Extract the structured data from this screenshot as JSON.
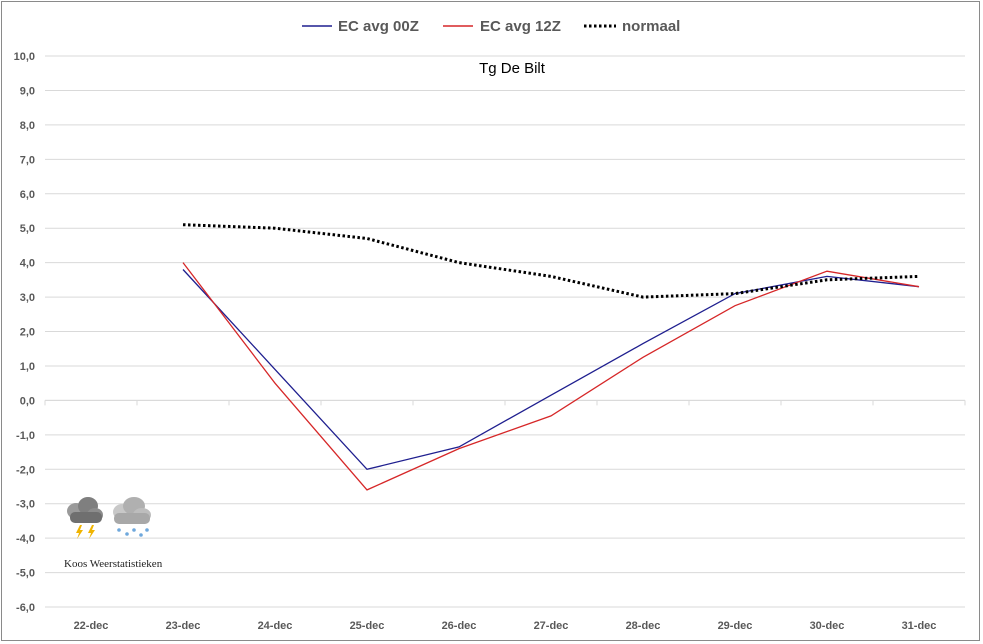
{
  "chart_data": {
    "type": "line",
    "title": "Tg De Bilt",
    "categories": [
      "22-dec",
      "23-dec",
      "24-dec",
      "25-dec",
      "26-dec",
      "27-dec",
      "28-dec",
      "29-dec",
      "30-dec",
      "31-dec"
    ],
    "y_ticks": [
      "10,0",
      "9,0",
      "8,0",
      "7,0",
      "6,0",
      "5,0",
      "4,0",
      "3,0",
      "2,0",
      "1,0",
      "0,0",
      "-1,0",
      "-2,0",
      "-3,0",
      "-4,0",
      "-5,0",
      "-6,0"
    ],
    "ylim": [
      -6,
      10
    ],
    "grid": true,
    "legend_position": "top",
    "series": [
      {
        "name": "EC avg 00Z",
        "color": "#1f1f8f",
        "style": "solid",
        "values": [
          null,
          3.8,
          0.9,
          -2.0,
          -1.35,
          0.15,
          1.65,
          3.1,
          3.6,
          3.3
        ]
      },
      {
        "name": "EC avg 12Z",
        "color": "#d62728",
        "style": "solid",
        "values": [
          null,
          4.0,
          0.5,
          -2.6,
          -1.4,
          -0.45,
          1.25,
          2.75,
          3.75,
          3.3
        ]
      },
      {
        "name": "normaal",
        "color": "#000000",
        "style": "dotted",
        "values": [
          null,
          5.1,
          5.0,
          4.7,
          4.0,
          3.6,
          3.0,
          3.1,
          3.5,
          3.6
        ]
      }
    ]
  },
  "logo": {
    "text": "Koos Weerstatistieken",
    "icons": [
      "thunderstorm-cloud-icon",
      "snow-cloud-icon"
    ]
  }
}
